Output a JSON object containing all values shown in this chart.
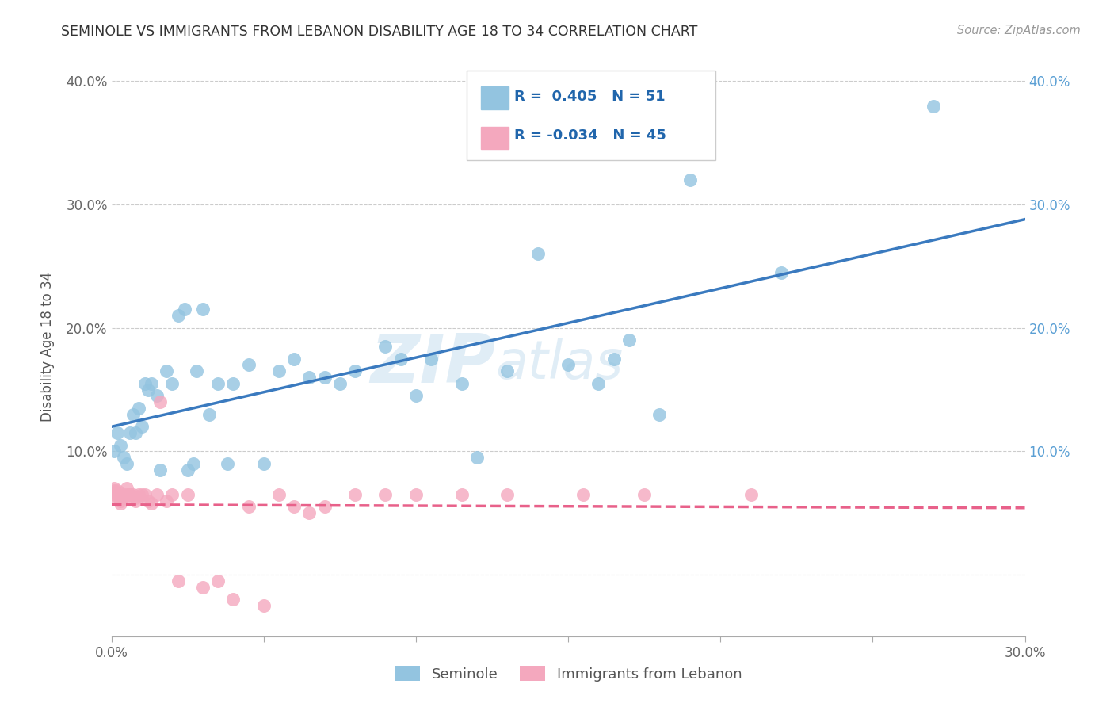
{
  "title": "SEMINOLE VS IMMIGRANTS FROM LEBANON DISABILITY AGE 18 TO 34 CORRELATION CHART",
  "source": "Source: ZipAtlas.com",
  "ylabel": "Disability Age 18 to 34",
  "x_min": 0.0,
  "x_max": 0.3,
  "y_min": -0.05,
  "y_max": 0.42,
  "blue_color": "#93c4e0",
  "pink_color": "#f4a8be",
  "blue_line_color": "#3a7abf",
  "pink_line_color": "#e8618a",
  "blue_R": 0.405,
  "blue_N": 51,
  "pink_R": -0.034,
  "pink_N": 45,
  "legend_label_blue": "Seminole",
  "legend_label_pink": "Immigrants from Lebanon",
  "watermark_zip": "ZIP",
  "watermark_atlas": "atlas",
  "blue_x": [
    0.001,
    0.002,
    0.003,
    0.004,
    0.005,
    0.006,
    0.007,
    0.008,
    0.009,
    0.01,
    0.011,
    0.012,
    0.013,
    0.015,
    0.016,
    0.018,
    0.02,
    0.022,
    0.024,
    0.025,
    0.027,
    0.028,
    0.03,
    0.032,
    0.035,
    0.038,
    0.04,
    0.045,
    0.05,
    0.055,
    0.06,
    0.065,
    0.07,
    0.075,
    0.08,
    0.09,
    0.095,
    0.1,
    0.105,
    0.115,
    0.12,
    0.13,
    0.14,
    0.15,
    0.16,
    0.165,
    0.17,
    0.18,
    0.19,
    0.22,
    0.27
  ],
  "blue_y": [
    0.1,
    0.115,
    0.105,
    0.095,
    0.09,
    0.115,
    0.13,
    0.115,
    0.135,
    0.12,
    0.155,
    0.15,
    0.155,
    0.145,
    0.085,
    0.165,
    0.155,
    0.21,
    0.215,
    0.085,
    0.09,
    0.165,
    0.215,
    0.13,
    0.155,
    0.09,
    0.155,
    0.17,
    0.09,
    0.165,
    0.175,
    0.16,
    0.16,
    0.155,
    0.165,
    0.185,
    0.175,
    0.145,
    0.175,
    0.155,
    0.095,
    0.165,
    0.26,
    0.17,
    0.155,
    0.175,
    0.19,
    0.13,
    0.32,
    0.245,
    0.38
  ],
  "pink_x": [
    0.001,
    0.001,
    0.001,
    0.001,
    0.002,
    0.002,
    0.003,
    0.003,
    0.004,
    0.004,
    0.005,
    0.005,
    0.006,
    0.006,
    0.007,
    0.008,
    0.008,
    0.009,
    0.01,
    0.011,
    0.012,
    0.013,
    0.015,
    0.016,
    0.018,
    0.02,
    0.022,
    0.025,
    0.03,
    0.035,
    0.04,
    0.045,
    0.05,
    0.055,
    0.06,
    0.065,
    0.07,
    0.08,
    0.09,
    0.1,
    0.115,
    0.13,
    0.155,
    0.175,
    0.21
  ],
  "pink_y": [
    0.07,
    0.068,
    0.065,
    0.062,
    0.068,
    0.065,
    0.06,
    0.058,
    0.065,
    0.062,
    0.07,
    0.065,
    0.065,
    0.065,
    0.065,
    0.062,
    0.06,
    0.065,
    0.065,
    0.065,
    0.06,
    0.058,
    0.065,
    0.14,
    0.06,
    0.065,
    -0.005,
    0.065,
    -0.01,
    -0.005,
    -0.02,
    0.055,
    -0.025,
    0.065,
    0.055,
    0.05,
    0.055,
    0.065,
    0.065,
    0.065,
    0.065,
    0.065,
    0.065,
    0.065,
    0.065
  ]
}
